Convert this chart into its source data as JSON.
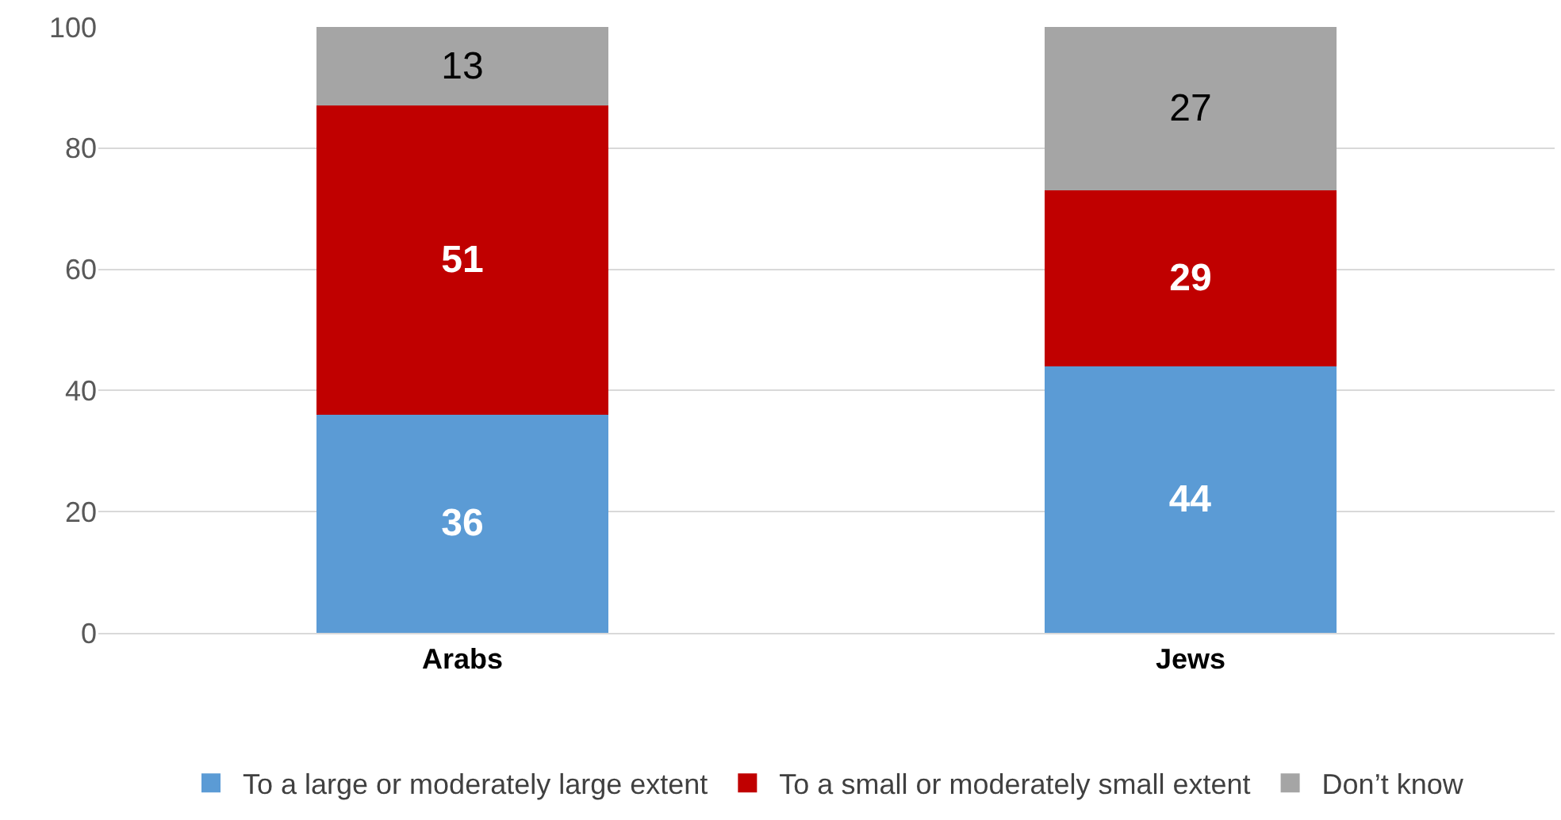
{
  "chart_data": {
    "type": "bar",
    "stacked": true,
    "categories": [
      "Arabs",
      "Jews"
    ],
    "series": [
      {
        "name": "To a large or moderately large extent",
        "color": "#5b9bd5",
        "values": [
          36,
          44
        ]
      },
      {
        "name": "To a small or moderately small extent",
        "color": "#c00000",
        "values": [
          51,
          29
        ]
      },
      {
        "name": "Don’t know",
        "color": "#a5a5a5",
        "values": [
          13,
          27
        ]
      }
    ],
    "ylim": [
      0,
      100
    ],
    "yticks": [
      0,
      20,
      40,
      60,
      80,
      100
    ],
    "grid": "y",
    "legend": "bottom",
    "data_labels": true
  }
}
